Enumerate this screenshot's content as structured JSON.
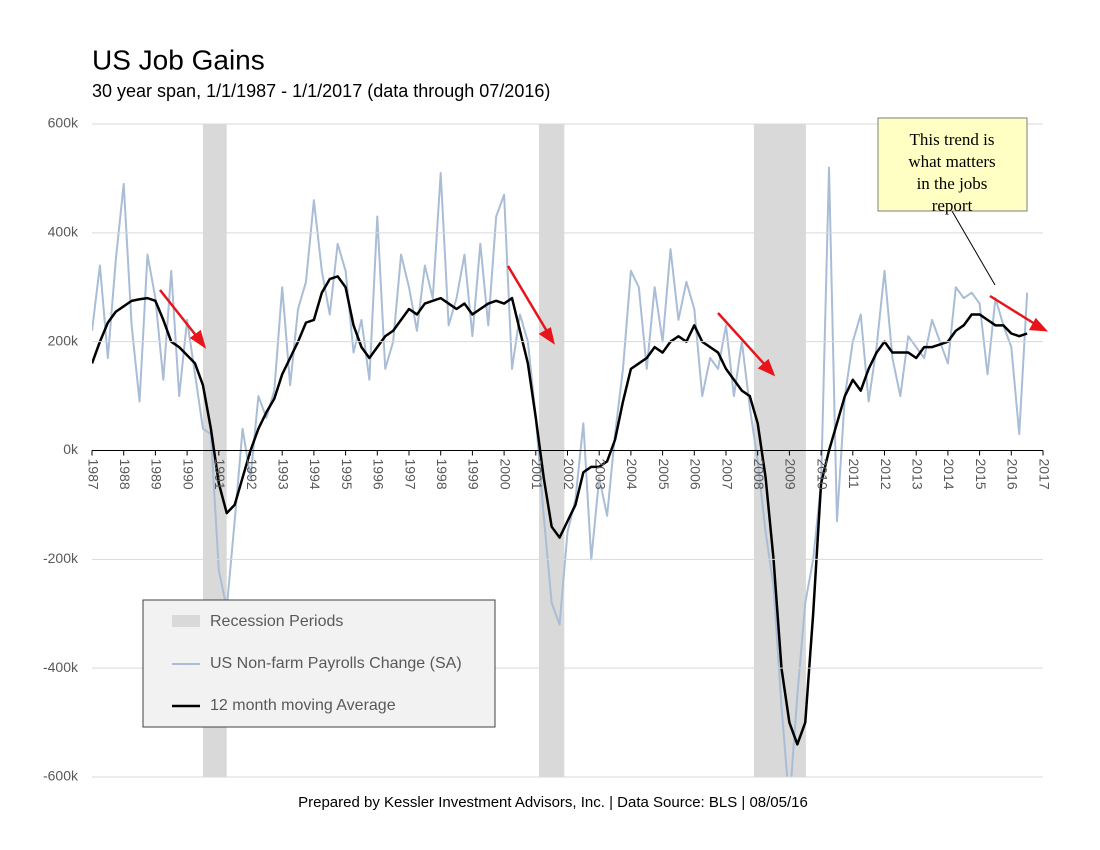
{
  "chart_data": {
    "type": "line",
    "title": "US Job Gains",
    "subtitle": "30 year span, 1/1/1987 - 1/1/2017 (data through 07/2016)",
    "source": "Prepared by Kessler Investment Advisors, Inc. | Data Source: BLS | 08/05/16",
    "annotation": [
      "This trend is",
      "what matters",
      "in the jobs",
      "report"
    ],
    "xlim": [
      1987,
      2017
    ],
    "xticks": [
      1987,
      1988,
      1989,
      1990,
      1991,
      1992,
      1993,
      1994,
      1995,
      1996,
      1997,
      1998,
      1999,
      2000,
      2001,
      2002,
      2003,
      2004,
      2005,
      2006,
      2007,
      2008,
      2009,
      2010,
      2011,
      2012,
      2013,
      2014,
      2015,
      2016,
      2017
    ],
    "ylim": [
      -600000,
      600000
    ],
    "yticks": [
      {
        "value": -600000,
        "label": "-600k"
      },
      {
        "value": -400000,
        "label": "-400k"
      },
      {
        "value": -200000,
        "label": "-200k"
      },
      {
        "value": 0,
        "label": "0k"
      },
      {
        "value": 200000,
        "label": "200k"
      },
      {
        "value": 400000,
        "label": "400k"
      },
      {
        "value": 600000,
        "label": "600k"
      }
    ],
    "grid": true,
    "recessions": {
      "name": "Recession Periods",
      "color": "#d9d9d9",
      "periods": [
        [
          1990.5,
          1991.25
        ],
        [
          2001.1,
          2001.9
        ],
        [
          2007.88,
          2009.52
        ]
      ]
    },
    "x": [
      1987,
      1987.25,
      1987.5,
      1987.75,
      1988,
      1988.25,
      1988.5,
      1988.75,
      1989,
      1989.25,
      1989.5,
      1989.75,
      1990,
      1990.25,
      1990.5,
      1990.75,
      1991,
      1991.25,
      1991.5,
      1991.75,
      1992,
      1992.25,
      1992.5,
      1992.75,
      1993,
      1993.25,
      1993.5,
      1993.75,
      1994,
      1994.25,
      1994.5,
      1994.75,
      1995,
      1995.25,
      1995.5,
      1995.75,
      1996,
      1996.25,
      1996.5,
      1996.75,
      1997,
      1997.25,
      1997.5,
      1997.75,
      1998,
      1998.25,
      1998.5,
      1998.75,
      1999,
      1999.25,
      1999.5,
      1999.75,
      2000,
      2000.25,
      2000.5,
      2000.75,
      2001,
      2001.25,
      2001.5,
      2001.75,
      2002,
      2002.25,
      2002.5,
      2002.75,
      2003,
      2003.25,
      2003.5,
      2003.75,
      2004,
      2004.25,
      2004.5,
      2004.75,
      2005,
      2005.25,
      2005.5,
      2005.75,
      2006,
      2006.25,
      2006.5,
      2006.75,
      2007,
      2007.25,
      2007.5,
      2007.75,
      2008,
      2008.25,
      2008.5,
      2008.75,
      2009,
      2009.25,
      2009.5,
      2009.75,
      2010,
      2010.25,
      2010.5,
      2010.75,
      2011,
      2011.25,
      2011.5,
      2011.75,
      2012,
      2012.25,
      2012.5,
      2012.75,
      2013,
      2013.25,
      2013.5,
      2013.75,
      2014,
      2014.25,
      2014.5,
      2014.75,
      2015,
      2015.25,
      2015.5,
      2015.75,
      2016,
      2016.25,
      2016.5
    ],
    "series": [
      {
        "name": "US Non-farm Payrolls Change (SA)",
        "color": "#a9bdd6",
        "width": 2,
        "values": [
          220000,
          340000,
          170000,
          350000,
          490000,
          230000,
          90000,
          360000,
          280000,
          130000,
          330000,
          100000,
          240000,
          140000,
          40000,
          30000,
          -220000,
          -290000,
          -130000,
          40000,
          -50000,
          100000,
          60000,
          110000,
          300000,
          120000,
          260000,
          310000,
          460000,
          330000,
          250000,
          380000,
          330000,
          180000,
          240000,
          130000,
          430000,
          150000,
          200000,
          360000,
          300000,
          220000,
          340000,
          280000,
          510000,
          230000,
          280000,
          360000,
          210000,
          380000,
          230000,
          430000,
          470000,
          150000,
          250000,
          200000,
          60000,
          -120000,
          -280000,
          -320000,
          -150000,
          -90000,
          50000,
          -200000,
          -50000,
          -120000,
          30000,
          150000,
          330000,
          300000,
          150000,
          300000,
          200000,
          370000,
          240000,
          310000,
          260000,
          100000,
          170000,
          150000,
          230000,
          100000,
          200000,
          80000,
          -20000,
          -150000,
          -250000,
          -470000,
          -650000,
          -450000,
          -280000,
          -200000,
          -60000,
          520000,
          -130000,
          100000,
          200000,
          250000,
          90000,
          190000,
          330000,
          170000,
          100000,
          210000,
          190000,
          170000,
          240000,
          200000,
          160000,
          300000,
          280000,
          290000,
          270000,
          140000,
          280000,
          230000,
          190000,
          30000,
          290000
        ]
      },
      {
        "name": "12 month moving Average",
        "color": "#000000",
        "width": 2.5,
        "values": [
          160000,
          200000,
          235000,
          255000,
          265000,
          275000,
          278000,
          280000,
          275000,
          240000,
          200000,
          190000,
          175000,
          160000,
          120000,
          40000,
          -60000,
          -115000,
          -100000,
          -50000,
          0,
          40000,
          70000,
          95000,
          140000,
          170000,
          200000,
          235000,
          240000,
          290000,
          315000,
          320000,
          300000,
          230000,
          190000,
          170000,
          190000,
          210000,
          220000,
          240000,
          260000,
          250000,
          270000,
          275000,
          280000,
          270000,
          260000,
          270000,
          250000,
          260000,
          270000,
          275000,
          270000,
          280000,
          220000,
          160000,
          60000,
          -50000,
          -140000,
          -160000,
          -130000,
          -100000,
          -40000,
          -30000,
          -30000,
          -20000,
          20000,
          90000,
          150000,
          160000,
          170000,
          190000,
          180000,
          200000,
          210000,
          200000,
          230000,
          200000,
          190000,
          180000,
          150000,
          130000,
          110000,
          100000,
          50000,
          -50000,
          -200000,
          -400000,
          -500000,
          -540000,
          -500000,
          -300000,
          -60000,
          0,
          50000,
          100000,
          130000,
          110000,
          150000,
          180000,
          200000,
          180000,
          180000,
          180000,
          170000,
          190000,
          190000,
          195000,
          200000,
          220000,
          230000,
          250000,
          250000,
          240000,
          230000,
          230000,
          215000,
          210000,
          215000
        ]
      }
    ]
  }
}
